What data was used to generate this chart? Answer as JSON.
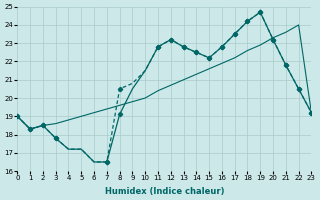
{
  "xlabel": "Humidex (Indice chaleur)",
  "bg_color": "#cce8e8",
  "grid_color": "#aacccc",
  "line_color": "#006666",
  "xlim": [
    0,
    23
  ],
  "ylim": [
    16,
    25
  ],
  "xticks": [
    0,
    1,
    2,
    3,
    4,
    5,
    6,
    7,
    8,
    9,
    10,
    11,
    12,
    13,
    14,
    15,
    16,
    17,
    18,
    19,
    20,
    21,
    22,
    23
  ],
  "yticks": [
    16,
    17,
    18,
    19,
    20,
    21,
    22,
    23,
    24,
    25
  ],
  "line1_x": [
    0,
    1,
    2,
    3,
    4,
    5,
    6,
    7,
    8,
    9,
    10,
    11,
    12,
    13,
    14,
    15,
    16,
    17,
    18,
    19,
    20,
    21,
    22,
    23
  ],
  "line1_y": [
    19.0,
    18.3,
    18.5,
    18.6,
    18.8,
    19.0,
    19.2,
    19.4,
    19.6,
    19.8,
    20.0,
    20.4,
    20.7,
    21.0,
    21.3,
    21.6,
    21.9,
    22.2,
    22.6,
    22.9,
    23.3,
    23.6,
    24.0,
    19.2
  ],
  "line2_x": [
    0,
    1,
    2,
    3,
    4,
    5,
    6,
    7,
    8,
    9,
    10,
    11,
    12,
    13,
    14,
    15,
    16,
    17,
    18,
    19,
    20,
    21,
    22,
    23
  ],
  "line2_y": [
    19.0,
    18.3,
    18.5,
    17.8,
    17.2,
    17.2,
    16.5,
    16.5,
    19.1,
    20.5,
    21.5,
    22.8,
    23.2,
    22.8,
    22.5,
    22.2,
    22.8,
    23.5,
    24.2,
    24.7,
    23.2,
    21.8,
    20.5,
    19.2
  ],
  "line2_markers": [
    0,
    1,
    2,
    3,
    7,
    8,
    11,
    12,
    13,
    14,
    15,
    16,
    17,
    18,
    19,
    20,
    21,
    22,
    23
  ],
  "line3_x": [
    0,
    1,
    2,
    3,
    4,
    5,
    6,
    7,
    8,
    9,
    10,
    11,
    12,
    13,
    14,
    15,
    16,
    17,
    18,
    19,
    20,
    21,
    22,
    23
  ],
  "line3_y": [
    19.0,
    18.3,
    18.5,
    17.8,
    17.2,
    17.2,
    16.5,
    16.5,
    20.5,
    20.8,
    21.5,
    22.8,
    23.2,
    22.8,
    22.5,
    22.2,
    22.8,
    23.5,
    24.2,
    24.7,
    23.2,
    21.8,
    20.5,
    19.2
  ],
  "line3_markers": [
    0,
    1,
    2,
    3,
    7,
    8,
    11,
    12,
    13,
    14,
    15,
    16,
    17,
    18,
    19,
    20,
    21,
    22,
    23
  ]
}
